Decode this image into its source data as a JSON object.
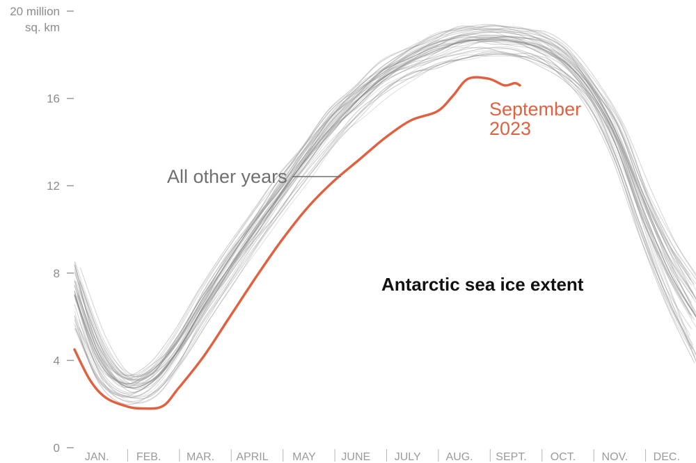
{
  "chart_data": {
    "type": "line",
    "title": "Antarctic sea ice extent",
    "ylabel": "",
    "xlabel": "",
    "y_unit_lines": [
      "20 million",
      "sq. km"
    ],
    "ylim": [
      0,
      20
    ],
    "y_ticks": [
      0,
      4,
      8,
      12,
      16,
      20
    ],
    "xlim": [
      0,
      12
    ],
    "x_ticks": [
      {
        "label": "JAN.",
        "month": 0
      },
      {
        "label": "FEB.",
        "month": 1
      },
      {
        "label": "MAR.",
        "month": 2
      },
      {
        "label": "APRIL",
        "month": 3
      },
      {
        "label": "MAY",
        "month": 4
      },
      {
        "label": "JUNE",
        "month": 5
      },
      {
        "label": "JULY",
        "month": 6
      },
      {
        "label": "AUG.",
        "month": 7
      },
      {
        "label": "SEPT.",
        "month": 8
      },
      {
        "label": "OCT.",
        "month": 9
      },
      {
        "label": "NOV.",
        "month": 10
      },
      {
        "label": "DEC.",
        "month": 11
      }
    ],
    "series": [
      {
        "name": "All other years",
        "color": "#7a7a7a",
        "x": [
          0,
          0.5,
          1,
          1.5,
          2,
          2.5,
          3,
          3.5,
          4,
          4.5,
          5,
          5.5,
          6,
          6.5,
          7,
          7.5,
          8,
          8.5,
          9,
          9.5,
          10,
          10.5,
          11,
          11.5,
          12
        ],
        "y": [
          7.0,
          4.0,
          2.8,
          3.1,
          4.5,
          6.5,
          8.3,
          10.0,
          11.7,
          13.3,
          14.8,
          16.0,
          17.0,
          17.7,
          18.2,
          18.6,
          18.7,
          18.6,
          18.3,
          17.6,
          16.2,
          14.0,
          10.8,
          8.0,
          6.0
        ]
      },
      {
        "name": "September 2023",
        "color": "#e0613f",
        "x": [
          0,
          0.3,
          0.6,
          1,
          1.3,
          1.7,
          2,
          2.5,
          3,
          3.5,
          4,
          4.5,
          5,
          5.5,
          6,
          6.5,
          7,
          7.3,
          7.6,
          8,
          8.3,
          8.5,
          8.6
        ],
        "y": [
          4.5,
          3.1,
          2.3,
          1.9,
          1.8,
          1.9,
          2.7,
          4.2,
          6.0,
          7.8,
          9.5,
          11.0,
          12.2,
          13.2,
          14.2,
          15.0,
          15.4,
          16.1,
          16.9,
          16.9,
          16.6,
          16.7,
          16.6
        ]
      }
    ],
    "annotations": {
      "other_years": "All other years",
      "current_line1": "September",
      "current_line2": "2023"
    },
    "grid": false,
    "legend": "none (direct labels)"
  }
}
